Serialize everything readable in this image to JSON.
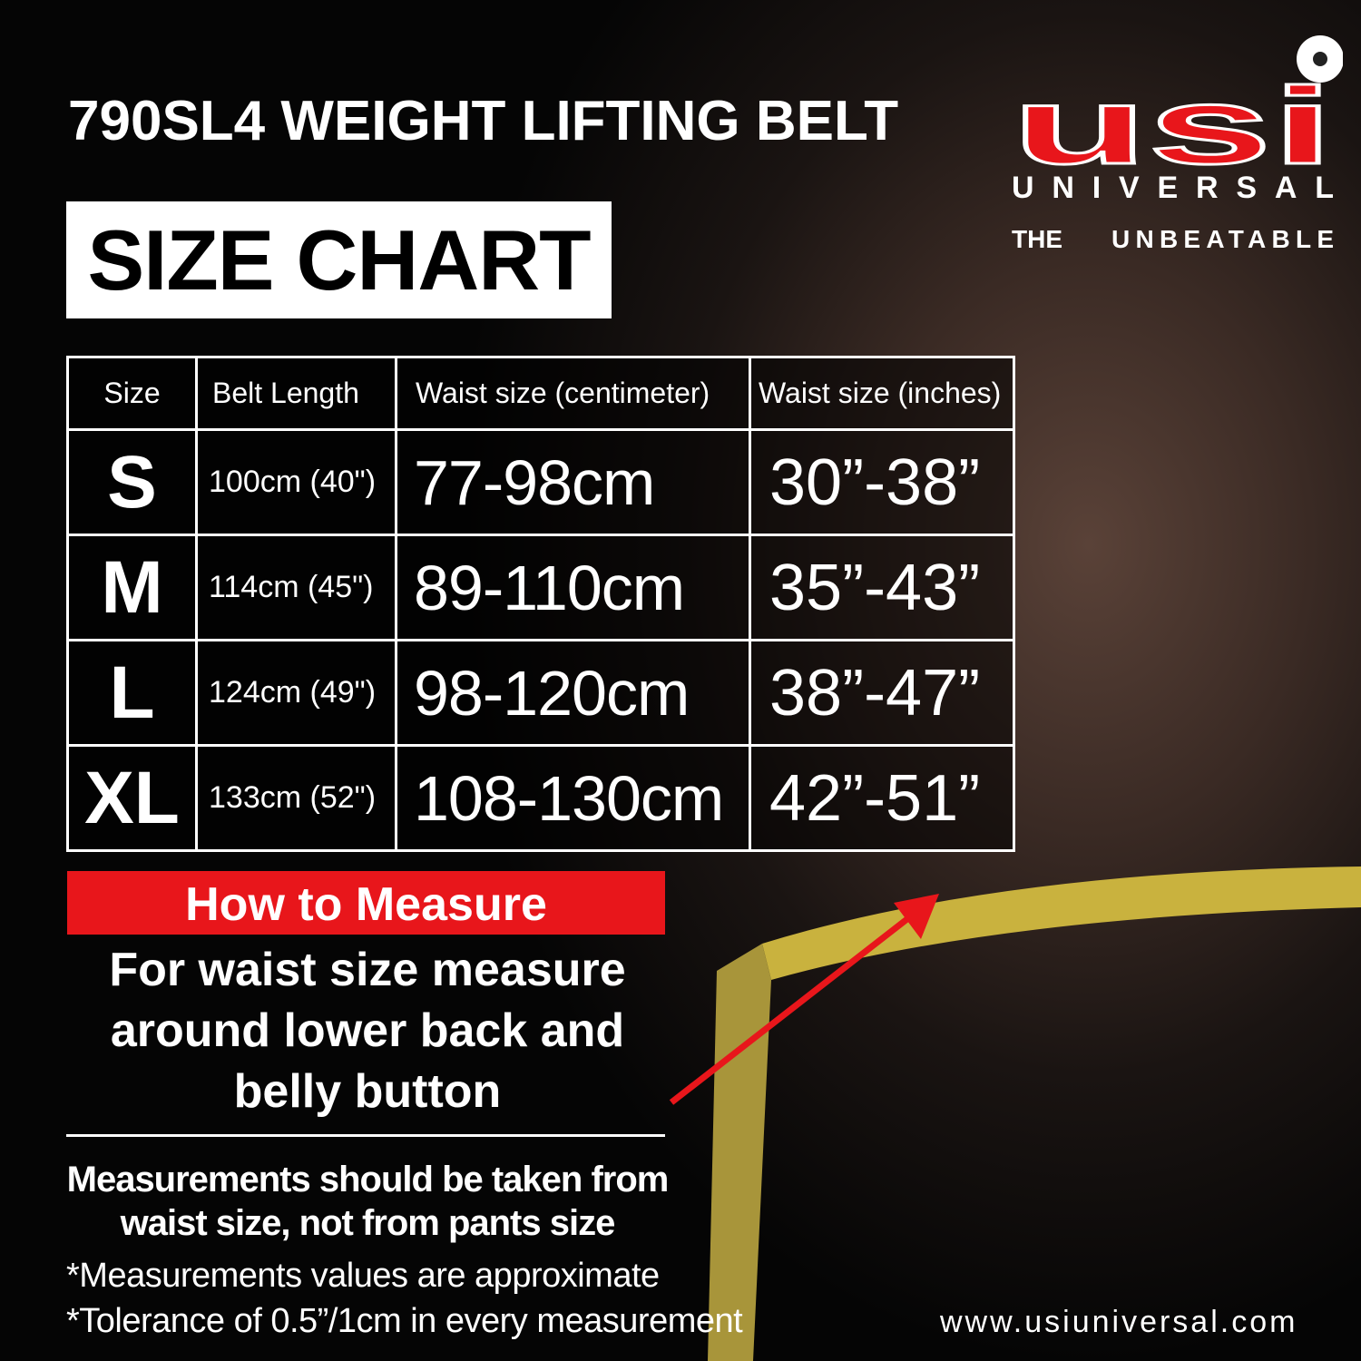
{
  "title": "790SL4 WEIGHT LIFTING BELT",
  "subtitle": "SIZE CHART",
  "brand": {
    "logo_text": "usi",
    "name": "UNIVERSAL",
    "tagline_left": "THE",
    "tagline_right": "UNBEATABLE",
    "colors": {
      "red": "#e8161b",
      "white": "#ffffff"
    }
  },
  "table": {
    "headers": [
      "Size",
      "Belt Length",
      "Waist size (centimeter)",
      "Waist size (inches)"
    ],
    "rows": [
      {
        "size": "S",
        "belt": "100cm (40\")",
        "cm": "77-98cm",
        "in": "30”-38”"
      },
      {
        "size": "M",
        "belt": "114cm (45\")",
        "cm": "89-110cm",
        "in": "35”-43”"
      },
      {
        "size": "L",
        "belt": "124cm (49\")",
        "cm": "98-120cm",
        "in": "38”-47”"
      },
      {
        "size": "XL",
        "belt": "133cm (52\")",
        "cm": "108-130cm",
        "in": "42”-51”"
      }
    ]
  },
  "how_to": {
    "heading": "How to Measure",
    "line1": "For waist size measure",
    "line2": "around lower back and",
    "line3": "belly button"
  },
  "note": {
    "line1": "Measurements should be taken from",
    "line2": "waist size, not from pants size"
  },
  "footnotes": [
    "*Measurements values are approximate",
    "*Tolerance of 0.5”/1cm in every measurement"
  ],
  "website": "www.usiuniversal.com",
  "colors": {
    "accent_red": "#e8161b",
    "tape_yellow": "#d8c24a"
  }
}
